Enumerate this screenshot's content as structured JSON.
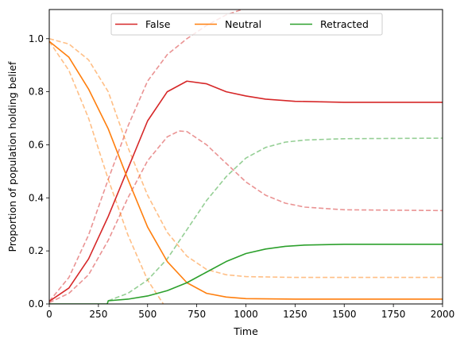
{
  "chart_data": {
    "type": "line",
    "title": "",
    "xlabel": "Time",
    "ylabel": "Proportion of population holding belief",
    "xlim": [
      0,
      2000
    ],
    "ylim": [
      0,
      1.11
    ],
    "x_ticks": [
      0,
      250,
      500,
      750,
      1000,
      1250,
      1500,
      1750,
      2000
    ],
    "x_tick_labels": [
      "0",
      "250",
      "500",
      "750",
      "1000",
      "1250",
      "1500",
      "1750",
      "2000"
    ],
    "y_ticks": [
      0.0,
      0.2,
      0.4,
      0.6,
      0.8,
      1.0
    ],
    "y_tick_labels": [
      "0.0",
      "0.2",
      "0.4",
      "0.6",
      "0.8",
      "1.0"
    ],
    "grid": false,
    "legend_position": "top-center",
    "legend": [
      "False",
      "Neutral",
      "Retracted"
    ],
    "series": [
      {
        "name": "False",
        "color": "#d62728",
        "style": "solid",
        "points": [
          [
            0,
            0.01
          ],
          [
            100,
            0.06
          ],
          [
            200,
            0.17
          ],
          [
            300,
            0.33
          ],
          [
            400,
            0.51
          ],
          [
            500,
            0.69
          ],
          [
            600,
            0.8
          ],
          [
            700,
            0.84
          ],
          [
            800,
            0.83
          ],
          [
            900,
            0.8
          ],
          [
            1000,
            0.784
          ],
          [
            1100,
            0.772
          ],
          [
            1250,
            0.764
          ],
          [
            1500,
            0.76
          ],
          [
            2000,
            0.76
          ]
        ]
      },
      {
        "name": "Neutral",
        "color": "#ff7f0e",
        "style": "solid",
        "points": [
          [
            0,
            0.99
          ],
          [
            100,
            0.93
          ],
          [
            200,
            0.81
          ],
          [
            300,
            0.66
          ],
          [
            400,
            0.47
          ],
          [
            500,
            0.29
          ],
          [
            600,
            0.16
          ],
          [
            700,
            0.08
          ],
          [
            800,
            0.04
          ],
          [
            900,
            0.026
          ],
          [
            1000,
            0.02
          ],
          [
            1250,
            0.018
          ],
          [
            2000,
            0.018
          ]
        ]
      },
      {
        "name": "Retracted",
        "color": "#2ca02c",
        "style": "solid",
        "points": [
          [
            0,
            0.0
          ],
          [
            295,
            0.0
          ],
          [
            300,
            0.012
          ],
          [
            400,
            0.018
          ],
          [
            500,
            0.03
          ],
          [
            600,
            0.05
          ],
          [
            700,
            0.08
          ],
          [
            800,
            0.12
          ],
          [
            900,
            0.16
          ],
          [
            1000,
            0.19
          ],
          [
            1100,
            0.207
          ],
          [
            1200,
            0.217
          ],
          [
            1300,
            0.222
          ],
          [
            1500,
            0.225
          ],
          [
            2000,
            0.225
          ]
        ]
      },
      {
        "color": "#d62728",
        "style": "dashed",
        "points": [
          [
            0,
            0.01
          ],
          [
            100,
            0.1
          ],
          [
            200,
            0.26
          ],
          [
            300,
            0.47
          ],
          [
            400,
            0.67
          ],
          [
            500,
            0.84
          ],
          [
            600,
            0.94
          ],
          [
            700,
            1.0
          ],
          [
            800,
            1.05
          ],
          [
            900,
            1.09
          ],
          [
            980,
            1.11
          ]
        ]
      },
      {
        "color": "#d62728",
        "style": "dashed",
        "points": [
          [
            0,
            0.005
          ],
          [
            100,
            0.04
          ],
          [
            200,
            0.11
          ],
          [
            300,
            0.24
          ],
          [
            400,
            0.4
          ],
          [
            500,
            0.54
          ],
          [
            600,
            0.63
          ],
          [
            660,
            0.652
          ],
          [
            700,
            0.65
          ],
          [
            800,
            0.6
          ],
          [
            900,
            0.53
          ],
          [
            1000,
            0.46
          ],
          [
            1100,
            0.41
          ],
          [
            1200,
            0.38
          ],
          [
            1300,
            0.365
          ],
          [
            1500,
            0.355
          ],
          [
            2000,
            0.352
          ]
        ]
      },
      {
        "color": "#ff7f0e",
        "style": "dashed",
        "points": [
          [
            0,
            0.99
          ],
          [
            100,
            0.88
          ],
          [
            200,
            0.7
          ],
          [
            300,
            0.47
          ],
          [
            400,
            0.26
          ],
          [
            500,
            0.09
          ],
          [
            580,
            0.0
          ]
        ]
      },
      {
        "color": "#ff7f0e",
        "style": "dashed",
        "points": [
          [
            0,
            1.0
          ],
          [
            100,
            0.98
          ],
          [
            200,
            0.92
          ],
          [
            300,
            0.8
          ],
          [
            400,
            0.59
          ],
          [
            500,
            0.41
          ],
          [
            600,
            0.27
          ],
          [
            700,
            0.18
          ],
          [
            800,
            0.13
          ],
          [
            900,
            0.11
          ],
          [
            1000,
            0.103
          ],
          [
            1250,
            0.1
          ],
          [
            2000,
            0.1
          ]
        ]
      },
      {
        "color": "#2ca02c",
        "style": "dashed",
        "points": [
          [
            300,
            0.012
          ],
          [
            400,
            0.04
          ],
          [
            500,
            0.09
          ],
          [
            600,
            0.17
          ],
          [
            700,
            0.28
          ],
          [
            800,
            0.39
          ],
          [
            900,
            0.48
          ],
          [
            1000,
            0.55
          ],
          [
            1100,
            0.59
          ],
          [
            1200,
            0.61
          ],
          [
            1300,
            0.618
          ],
          [
            1500,
            0.623
          ],
          [
            2000,
            0.625
          ]
        ]
      }
    ]
  }
}
